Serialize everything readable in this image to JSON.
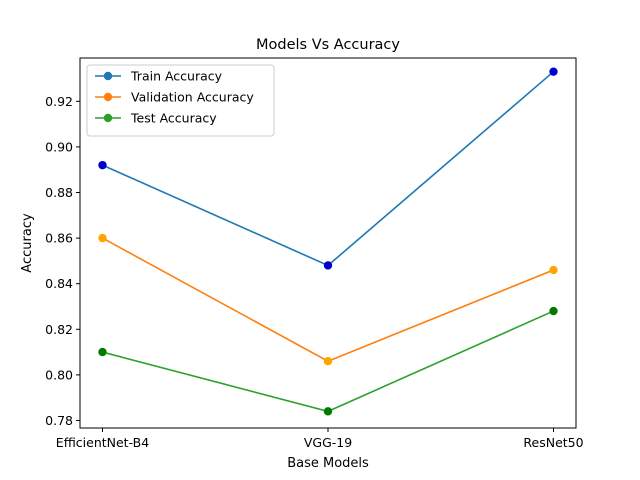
{
  "chart_data": {
    "type": "line",
    "title": "Models Vs Accuracy",
    "xlabel": "Base Models",
    "ylabel": "Accuracy",
    "categories": [
      "EfficientNet-B4",
      "VGG-19",
      "ResNet50"
    ],
    "ylim": [
      0.7767,
      0.939
    ],
    "yticks": [
      0.78,
      0.8,
      0.82,
      0.84,
      0.86,
      0.88,
      0.9,
      0.92
    ],
    "ytick_labels": [
      "0.78",
      "0.80",
      "0.82",
      "0.84",
      "0.86",
      "0.88",
      "0.90",
      "0.92"
    ],
    "grid": false,
    "legend_position": "top-left",
    "series": [
      {
        "name": "Train Accuracy",
        "values": [
          0.892,
          0.848,
          0.933
        ],
        "color": "#1f77b4",
        "marker_color": "#0000cc"
      },
      {
        "name": "Validation Accuracy",
        "values": [
          0.86,
          0.806,
          0.846
        ],
        "color": "#ff7f0e",
        "marker_color": "#ffa500"
      },
      {
        "name": "Test Accuracy",
        "values": [
          0.81,
          0.784,
          0.828
        ],
        "color": "#2ca02c",
        "marker_color": "#007a00"
      }
    ]
  }
}
